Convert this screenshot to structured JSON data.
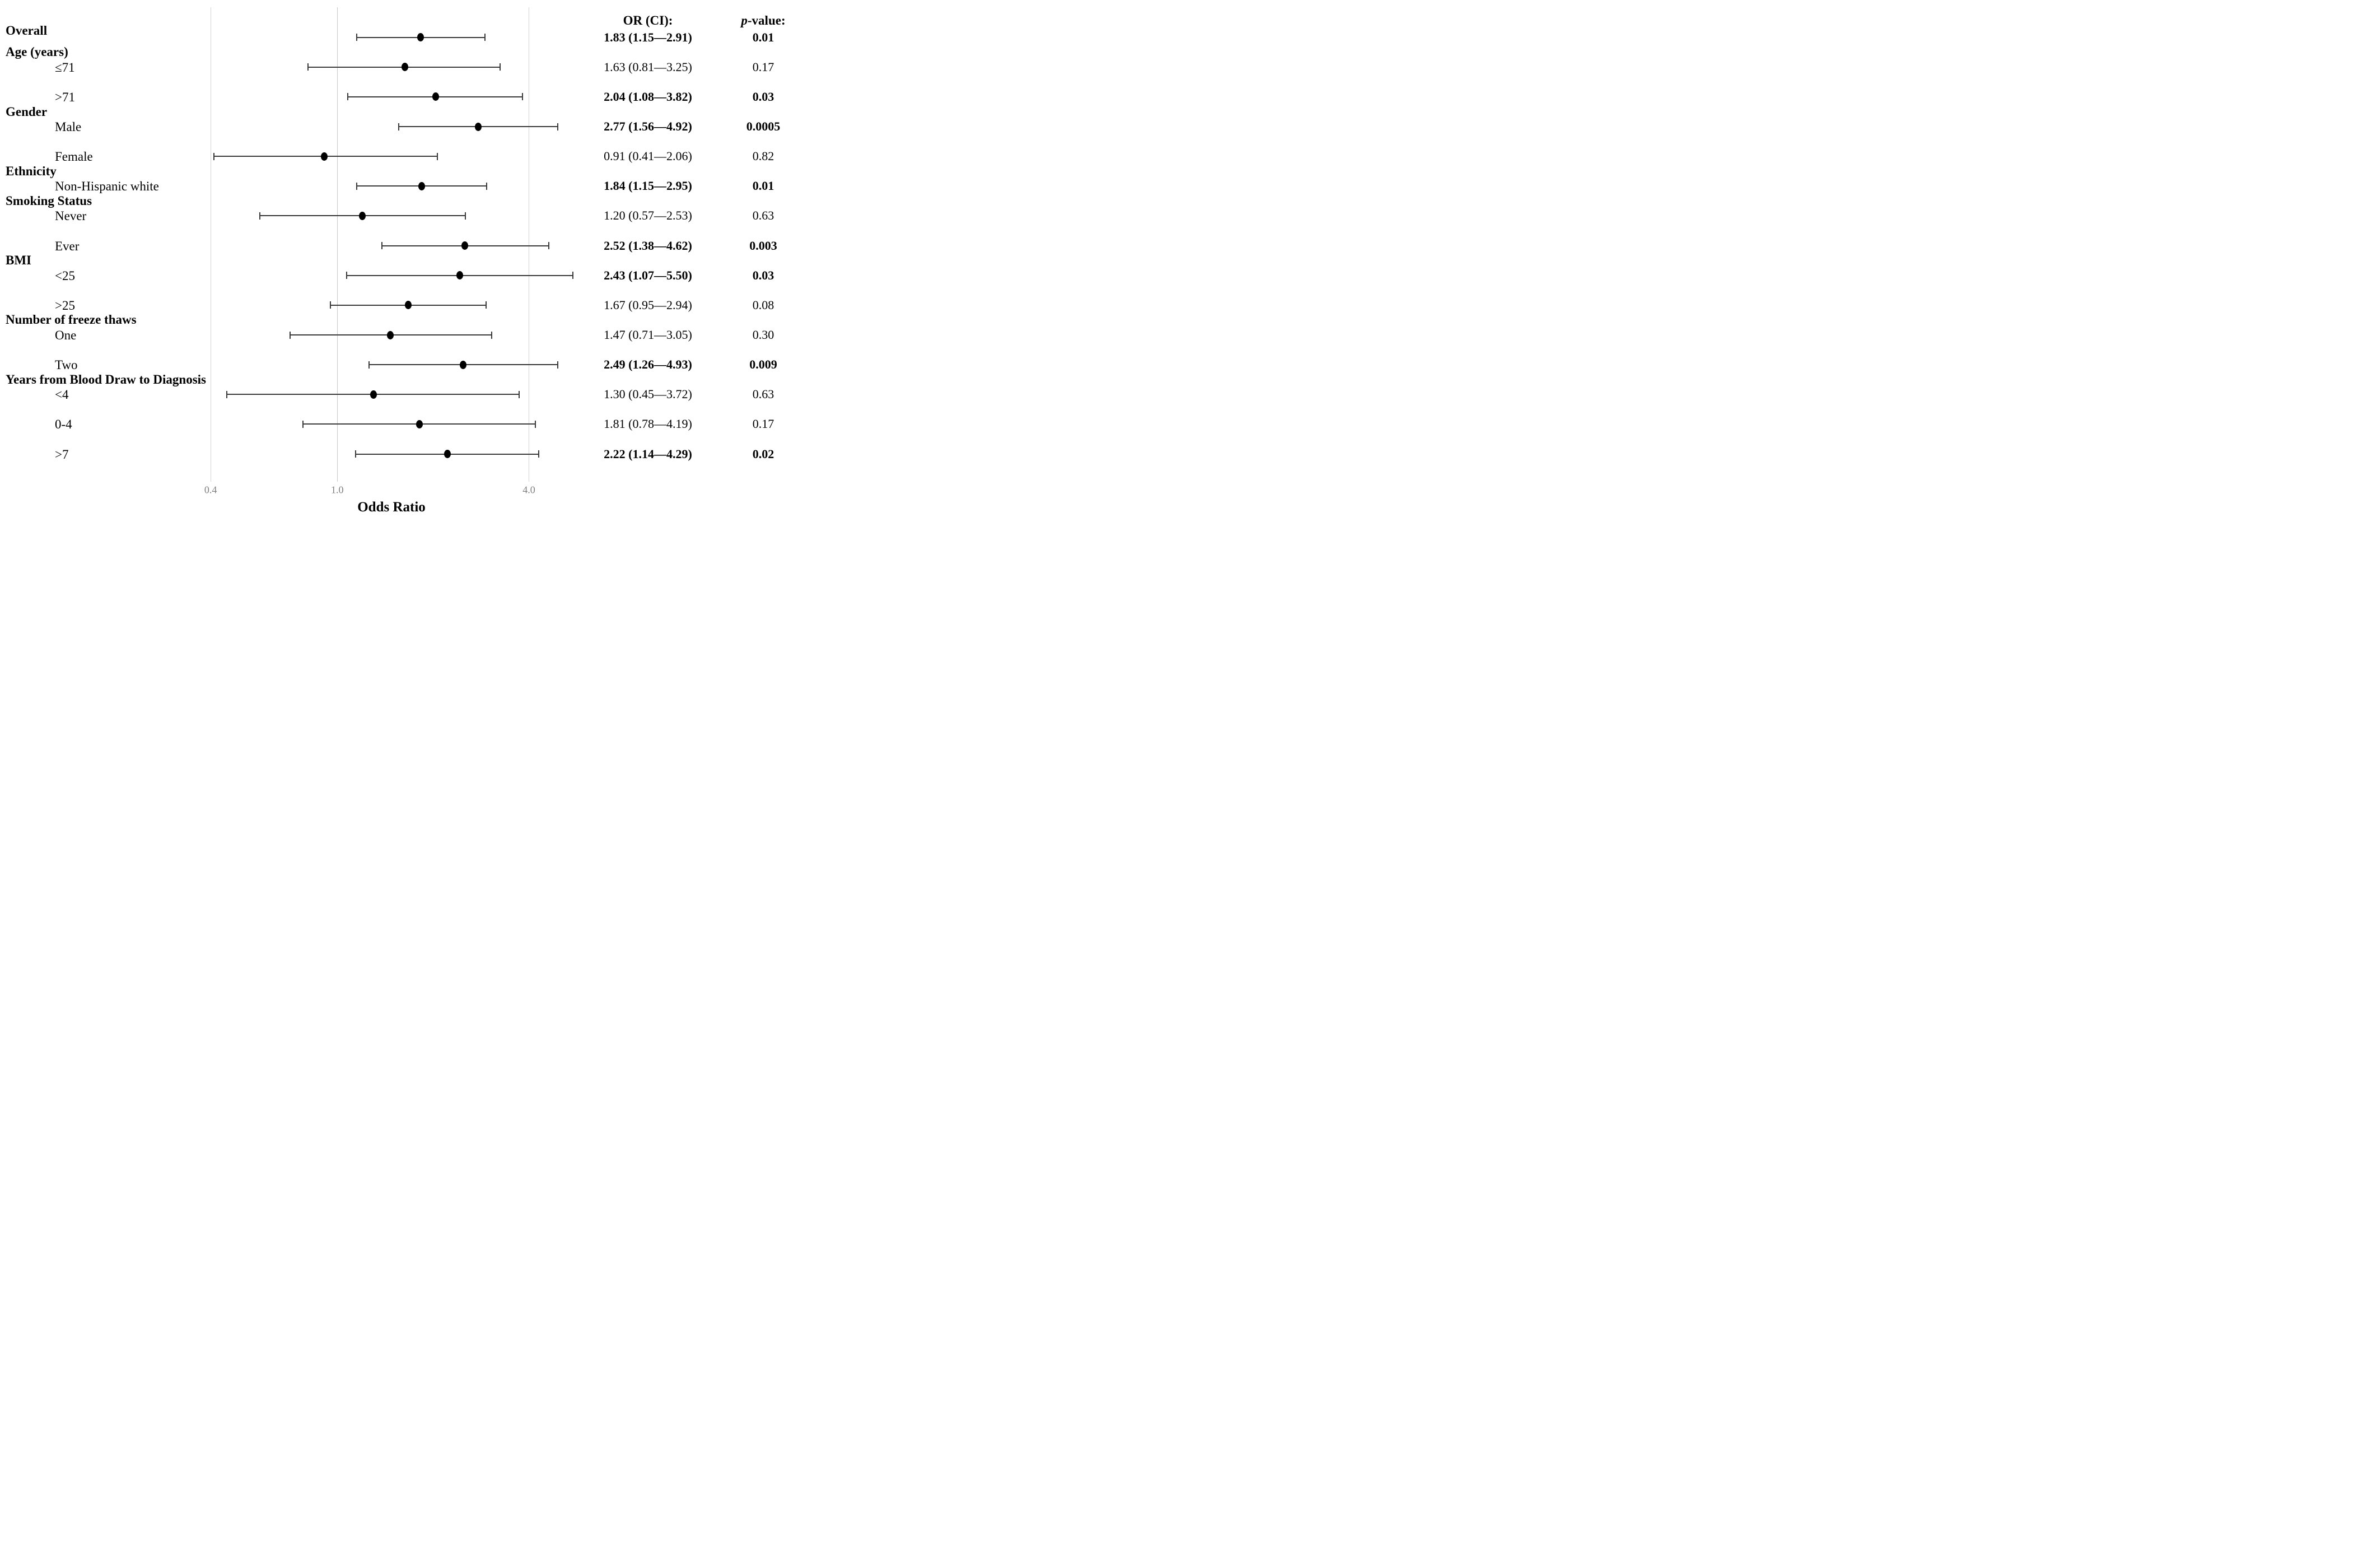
{
  "columns": {
    "or_header": "OR (CI):",
    "p_header_italic": "p",
    "p_header_rest": "-value:"
  },
  "xaxis": {
    "label": "Odds Ratio",
    "ticks": [
      {
        "value": 0.4,
        "label": "0.4"
      },
      {
        "value": 1.0,
        "label": "1.0"
      },
      {
        "value": 4.0,
        "label": "4.0"
      }
    ]
  },
  "chart_data": {
    "type": "forest",
    "x_scale": "log10",
    "x_range": [
      0.3,
      6.0
    ],
    "xlabel": "Odds Ratio",
    "legend": "none",
    "grid": "vertical-ticks-only",
    "groups": [
      {
        "label": "Age (years)",
        "after_row": 0
      },
      {
        "label": "Gender",
        "after_row": 2
      },
      {
        "label": "Ethnicity",
        "after_row": 4
      },
      {
        "label": "Smoking Status",
        "after_row": 5
      },
      {
        "label": "BMI",
        "after_row": 7
      },
      {
        "label": "Number of freeze thaws",
        "after_row": 9
      },
      {
        "label": "Years from Blood Draw to Diagnosis",
        "after_row": 11
      }
    ],
    "rows": [
      {
        "label": "Overall",
        "header_style": true,
        "or": 1.83,
        "lo": 1.15,
        "hi": 2.91,
        "or_text": "1.83 (1.15—2.91)",
        "p_text": "0.01",
        "significant": true
      },
      {
        "label": "≤71",
        "header_style": false,
        "or": 1.63,
        "lo": 0.81,
        "hi": 3.25,
        "or_text": "1.63 (0.81—3.25)",
        "p_text": "0.17",
        "significant": false
      },
      {
        "label": ">71",
        "header_style": false,
        "or": 2.04,
        "lo": 1.08,
        "hi": 3.82,
        "or_text": "2.04 (1.08—3.82)",
        "p_text": "0.03",
        "significant": true
      },
      {
        "label": "Male",
        "header_style": false,
        "or": 2.77,
        "lo": 1.56,
        "hi": 4.92,
        "or_text": "2.77 (1.56—4.92)",
        "p_text": "0.0005",
        "significant": true
      },
      {
        "label": "Female",
        "header_style": false,
        "or": 0.91,
        "lo": 0.41,
        "hi": 2.06,
        "or_text": "0.91 (0.41—2.06)",
        "p_text": "0.82",
        "significant": false
      },
      {
        "label": "Non-Hispanic white",
        "header_style": false,
        "or": 1.84,
        "lo": 1.15,
        "hi": 2.95,
        "or_text": "1.84 (1.15—2.95)",
        "p_text": "0.01",
        "significant": true
      },
      {
        "label": "Never",
        "header_style": false,
        "or": 1.2,
        "lo": 0.57,
        "hi": 2.53,
        "or_text": "1.20 (0.57—2.53)",
        "p_text": "0.63",
        "significant": false
      },
      {
        "label": "Ever",
        "header_style": false,
        "or": 2.52,
        "lo": 1.38,
        "hi": 4.62,
        "or_text": "2.52 (1.38—4.62)",
        "p_text": "0.003",
        "significant": true
      },
      {
        "label": "<25",
        "header_style": false,
        "or": 2.43,
        "lo": 1.07,
        "hi": 5.5,
        "or_text": "2.43 (1.07—5.50)",
        "p_text": "0.03",
        "significant": true
      },
      {
        "label": ">25",
        "header_style": false,
        "or": 1.67,
        "lo": 0.95,
        "hi": 2.94,
        "or_text": "1.67 (0.95—2.94)",
        "p_text": "0.08",
        "significant": false
      },
      {
        "label": "One",
        "header_style": false,
        "or": 1.47,
        "lo": 0.71,
        "hi": 3.05,
        "or_text": "1.47 (0.71—3.05)",
        "p_text": "0.30",
        "significant": false
      },
      {
        "label": "Two",
        "header_style": false,
        "or": 2.49,
        "lo": 1.26,
        "hi": 4.93,
        "or_text": "2.49 (1.26—4.93)",
        "p_text": "0.009",
        "significant": true
      },
      {
        "label": "<4",
        "header_style": false,
        "or": 1.3,
        "lo": 0.45,
        "hi": 3.72,
        "or_text": "1.30 (0.45—3.72)",
        "p_text": "0.63",
        "significant": false
      },
      {
        "label": "0-4",
        "header_style": false,
        "or": 1.81,
        "lo": 0.78,
        "hi": 4.19,
        "or_text": "1.81 (0.78—4.19)",
        "p_text": "0.17",
        "significant": false
      },
      {
        "label": ">7",
        "header_style": false,
        "or": 2.22,
        "lo": 1.14,
        "hi": 4.29,
        "or_text": "2.22 (1.14—4.29)",
        "p_text": "0.02",
        "significant": true
      }
    ]
  }
}
